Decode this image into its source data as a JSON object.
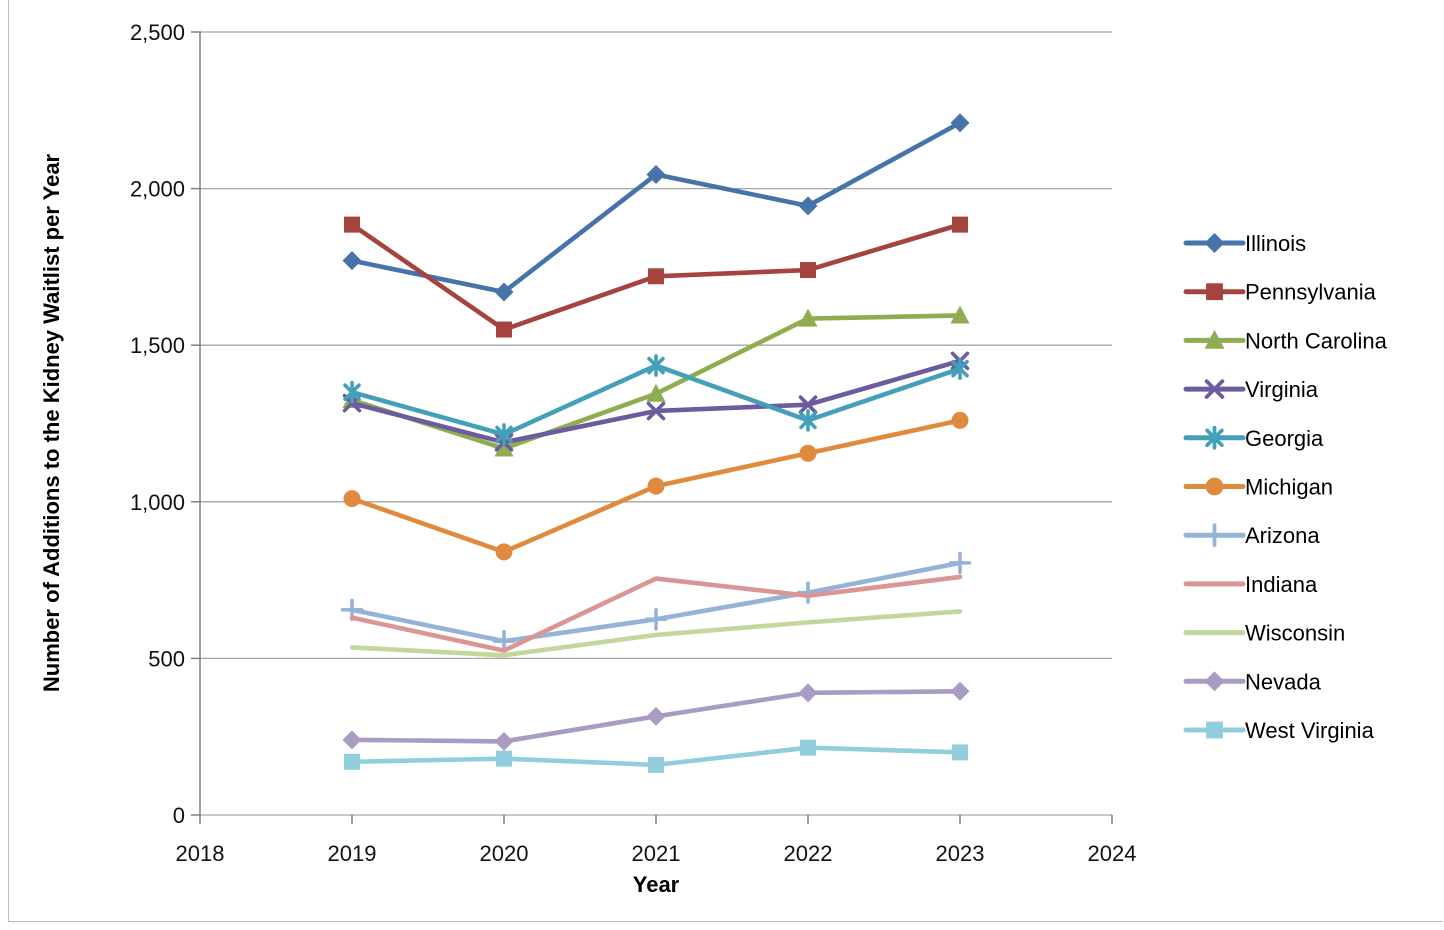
{
  "chart_data": {
    "type": "line",
    "title": "",
    "xlabel": "Year",
    "ylabel": "Number of Additions to the Kidney Waitlist per Year",
    "x": [
      2019,
      2020,
      2021,
      2022,
      2023
    ],
    "xlim": [
      2018,
      2024
    ],
    "ylim": [
      0,
      2500
    ],
    "xtick_labels": [
      "2018",
      "2019",
      "2020",
      "2021",
      "2022",
      "2023",
      "2024"
    ],
    "ytick_values": [
      0,
      500,
      1000,
      1500,
      2000,
      2500
    ],
    "ytick_labels": [
      "0",
      "500",
      "1,000",
      "1,500",
      "2,000",
      "2,500"
    ],
    "grid": "horizontal",
    "legend_position": "right",
    "series": [
      {
        "name": "Illinois",
        "color": "#4673A8",
        "marker": "diamond",
        "values": [
          1770,
          1670,
          2045,
          1945,
          2210
        ]
      },
      {
        "name": "Pennsylvania",
        "color": "#A5433E",
        "marker": "square",
        "values": [
          1885,
          1550,
          1720,
          1740,
          1885
        ]
      },
      {
        "name": "North Carolina",
        "color": "#8FAC51",
        "marker": "triangle",
        "values": [
          1325,
          1170,
          1345,
          1585,
          1595
        ]
      },
      {
        "name": "Virginia",
        "color": "#6C5B9E",
        "marker": "x",
        "values": [
          1315,
          1190,
          1290,
          1310,
          1450
        ]
      },
      {
        "name": "Georgia",
        "color": "#44A0B8",
        "marker": "star6",
        "values": [
          1350,
          1215,
          1435,
          1260,
          1425
        ]
      },
      {
        "name": "Michigan",
        "color": "#E08A3D",
        "marker": "circle",
        "values": [
          1010,
          840,
          1050,
          1155,
          1260
        ]
      },
      {
        "name": "Arizona",
        "color": "#95B3D7",
        "marker": "plus",
        "values": [
          655,
          555,
          625,
          710,
          805
        ]
      },
      {
        "name": "Indiana",
        "color": "#D99694",
        "marker": "none",
        "values": [
          630,
          525,
          755,
          700,
          760
        ]
      },
      {
        "name": "Wisconsin",
        "color": "#C3D69B",
        "marker": "none",
        "values": [
          535,
          510,
          575,
          615,
          650
        ]
      },
      {
        "name": "Nevada",
        "color": "#A99BC4",
        "marker": "diamond",
        "values": [
          240,
          235,
          315,
          390,
          395
        ]
      },
      {
        "name": "West Virginia",
        "color": "#92CDDC",
        "marker": "square",
        "values": [
          170,
          180,
          160,
          215,
          200
        ]
      }
    ]
  }
}
